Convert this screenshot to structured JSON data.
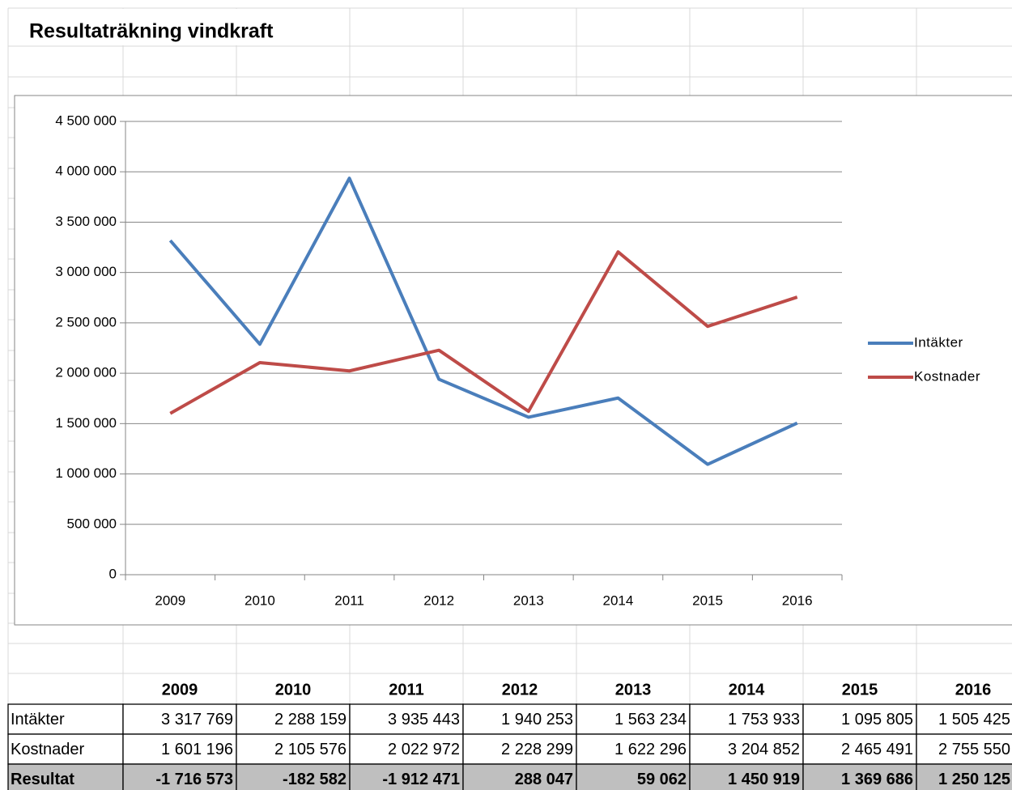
{
  "chart_data": {
    "type": "line",
    "title": "Resultaträkning vindkraft",
    "categories": [
      "2009",
      "2010",
      "2011",
      "2012",
      "2013",
      "2014",
      "2015",
      "2016"
    ],
    "series": [
      {
        "name": "Intäkter",
        "color": "#4a7ebb",
        "values": [
          3317769,
          2288159,
          3935443,
          1940253,
          1563234,
          1753933,
          1095805,
          1505425
        ]
      },
      {
        "name": "Kostnader",
        "color": "#be4b48",
        "values": [
          1601196,
          2105576,
          2022972,
          2228299,
          1622296,
          3204852,
          2465491,
          2755550
        ]
      }
    ],
    "ylim": [
      0,
      4500000
    ],
    "yticks": [
      0,
      {
        "value": 500000,
        "label": "500 000"
      },
      {
        "value": 1000000,
        "label": "1 000 000"
      },
      {
        "value": 1500000,
        "label": "1 500 000"
      },
      {
        "value": 2000000,
        "label": "2 000 000"
      },
      {
        "value": 2500000,
        "label": "2 500 000"
      },
      {
        "value": 3000000,
        "label": "3 000 000"
      },
      {
        "value": 3500000,
        "label": "3 500 000"
      },
      {
        "value": 4000000,
        "label": "4 000 000"
      },
      {
        "value": 4500000,
        "label": "4 500 000"
      }
    ],
    "grid": true,
    "legend": "right"
  },
  "table": {
    "header": [
      "2009",
      "2010",
      "2011",
      "2012",
      "2013",
      "2014",
      "2015",
      "2016"
    ],
    "rows": [
      [
        "Intäkter",
        "3 317 769",
        "2 288 159",
        "3 935 443",
        "1 940 253",
        "1 563 234",
        "1 753 933",
        "1 095 805",
        "1 505 425"
      ],
      [
        "Kostnader",
        "1 601 196",
        "2 105 576",
        "2 022 972",
        "2 228 299",
        "1 622 296",
        "3 204 852",
        "2 465 491",
        "2 755 550"
      ],
      [
        "Resultat",
        "-1 716 573",
        "-182 582",
        "-1 912 471",
        "288 047",
        "59 062",
        "1 450 919",
        "1 369 686",
        "1 250 125"
      ]
    ]
  }
}
